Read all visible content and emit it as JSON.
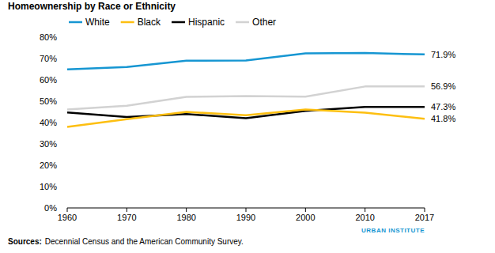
{
  "chart_data": {
    "type": "line",
    "title": "Homeownership by Race or Ethnicity",
    "categories": [
      "1960",
      "1970",
      "1980",
      "1990",
      "2000",
      "2010",
      "2017"
    ],
    "series": [
      {
        "name": "White",
        "color": "#1696d2",
        "values": [
          64.9,
          66.0,
          69.0,
          69.1,
          72.4,
          72.6,
          71.9
        ],
        "value_labels": [
          null,
          null,
          null,
          null,
          null,
          null,
          "71.9%"
        ]
      },
      {
        "name": "Black",
        "color": "#fdbf11",
        "values": [
          38.0,
          41.6,
          45.0,
          43.4,
          46.1,
          44.6,
          41.8
        ],
        "value_labels": [
          null,
          null,
          null,
          null,
          null,
          null,
          "41.8%"
        ]
      },
      {
        "name": "Hispanic",
        "color": "#000000",
        "values": [
          44.7,
          42.6,
          44.0,
          42.0,
          45.5,
          47.3,
          47.3
        ],
        "value_labels": [
          null,
          null,
          null,
          null,
          null,
          null,
          "47.3%"
        ]
      },
      {
        "name": "Other",
        "color": "#d2d2d2",
        "values": [
          46.1,
          47.9,
          52.0,
          52.4,
          52.1,
          56.9,
          56.9
        ],
        "value_labels": [
          null,
          null,
          null,
          null,
          null,
          null,
          "56.9%"
        ]
      }
    ],
    "ylim": [
      0,
      80
    ],
    "yticks": [
      {
        "value": 0,
        "label": "0%"
      },
      {
        "value": 10,
        "label": "10%"
      },
      {
        "value": 20,
        "label": "20%"
      },
      {
        "value": 30,
        "label": "30%"
      },
      {
        "value": 40,
        "label": "40%"
      },
      {
        "value": 50,
        "label": "50%"
      },
      {
        "value": 60,
        "label": "60%"
      },
      {
        "value": 70,
        "label": "70%"
      },
      {
        "value": 80,
        "label": "80%"
      }
    ],
    "grid": false,
    "legend": "top-left",
    "credit": "URBAN INSTITUTE",
    "source_label": "Sources:",
    "source": "Decennial Census and the American Community Survey."
  }
}
